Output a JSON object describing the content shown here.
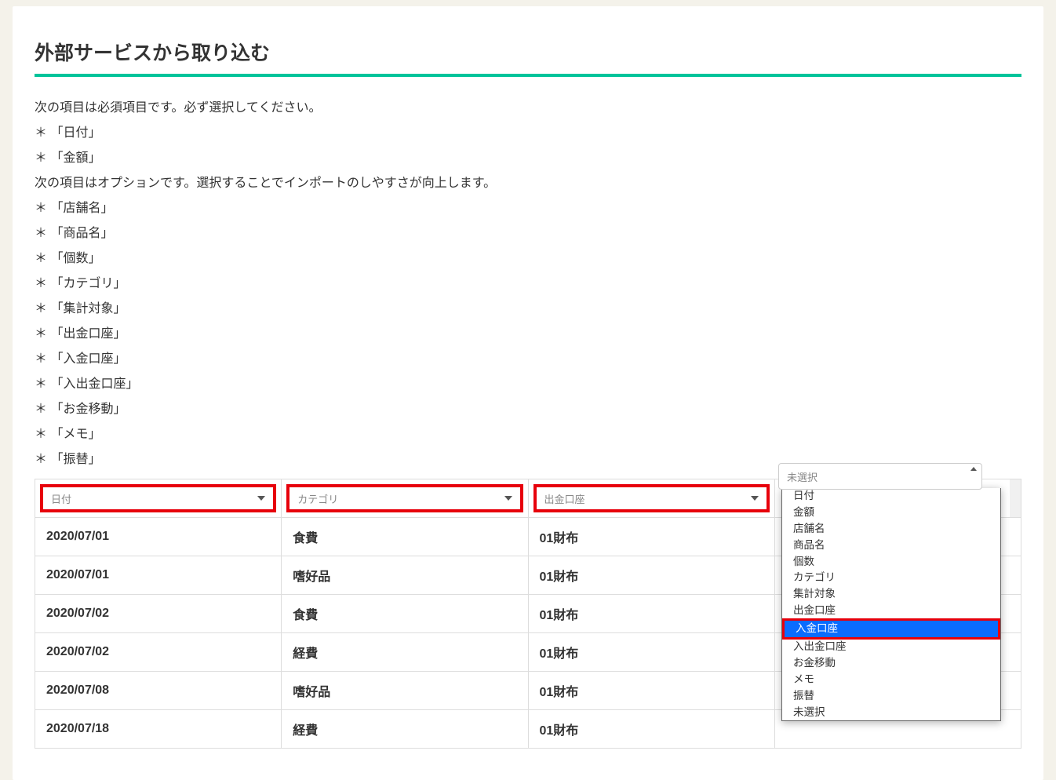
{
  "heading": "外部サービスから取り込む",
  "instructions": {
    "required_intro": "次の項目は必須項目です。必ず選択してください。",
    "required": [
      "「日付」",
      "「金額」"
    ],
    "optional_intro": "次の項目はオプションです。選択することでインポートのしやすさが向上します。",
    "optional": [
      "「店舗名」",
      "「商品名」",
      "「個数」",
      "「カテゴリ」",
      "「集計対象」",
      "「出金口座」",
      "「入金口座」",
      "「入出金口座」",
      "「お金移動」",
      "「メモ」",
      "「振替」"
    ]
  },
  "column_selectors": [
    {
      "value": "日付",
      "highlighted": true
    },
    {
      "value": "カテゴリ",
      "highlighted": true
    },
    {
      "value": "出金口座",
      "highlighted": true
    },
    {
      "value": "未選択",
      "highlighted": false,
      "open": true
    }
  ],
  "dropdown": {
    "current": "未選択",
    "options": [
      "日付",
      "金額",
      "店舗名",
      "商品名",
      "個数",
      "カテゴリ",
      "集計対象",
      "出金口座",
      "入金口座",
      "入出金口座",
      "お金移動",
      "メモ",
      "振替",
      "未選択"
    ],
    "highlighted_index": 8
  },
  "rows": [
    {
      "c0": "2020/07/01",
      "c1": "食費",
      "c2": "01財布",
      "c3": ""
    },
    {
      "c0": "2020/07/01",
      "c1": "嗜好品",
      "c2": "01財布",
      "c3": ""
    },
    {
      "c0": "2020/07/02",
      "c1": "食費",
      "c2": "01財布",
      "c3": ""
    },
    {
      "c0": "2020/07/02",
      "c1": "経費",
      "c2": "01財布",
      "c3": ""
    },
    {
      "c0": "2020/07/08",
      "c1": "嗜好品",
      "c2": "01財布",
      "c3": ""
    },
    {
      "c0": "2020/07/18",
      "c1": "経費",
      "c2": "01財布",
      "c3": ""
    }
  ],
  "bullet": "＊ "
}
